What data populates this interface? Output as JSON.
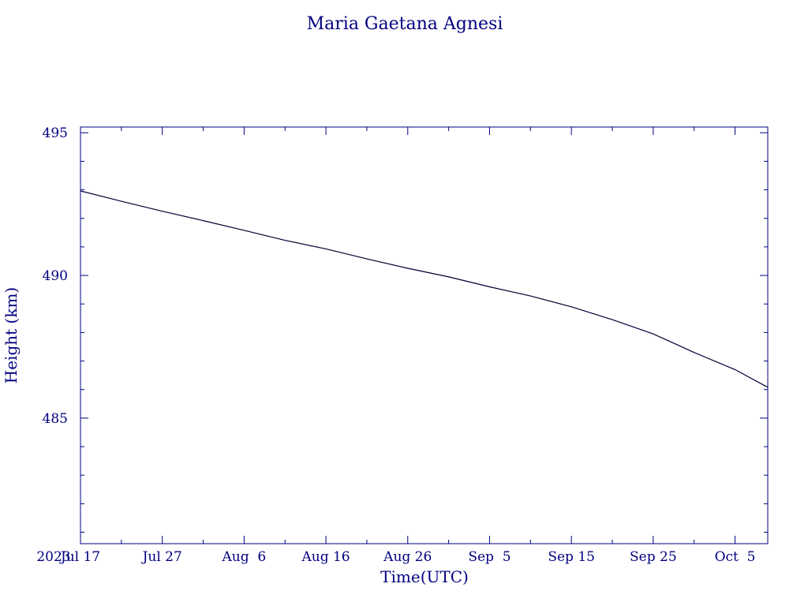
{
  "chart_data": {
    "type": "line",
    "title": "Maria Gaetana Agnesi",
    "xlabel": "Time(UTC)",
    "ylabel": "Height (km)",
    "x_start_label": "2023",
    "xlim": [
      "2023-07-17",
      "2023-10-09"
    ],
    "ylim": [
      480.6,
      495.2
    ],
    "x_ticks": [
      {
        "date": "2023-07-17",
        "label": "Jul 17"
      },
      {
        "date": "2023-07-27",
        "label": "Jul 27"
      },
      {
        "date": "2023-08-06",
        "label": "Aug  6"
      },
      {
        "date": "2023-08-16",
        "label": "Aug 16"
      },
      {
        "date": "2023-08-26",
        "label": "Aug 26"
      },
      {
        "date": "2023-09-05",
        "label": "Sep  5"
      },
      {
        "date": "2023-09-15",
        "label": "Sep 15"
      },
      {
        "date": "2023-09-25",
        "label": "Sep 25"
      },
      {
        "date": "2023-10-05",
        "label": "Oct  5"
      }
    ],
    "y_ticks": [
      {
        "value": 495,
        "label": "495"
      },
      {
        "value": 490,
        "label": "490"
      },
      {
        "value": 485,
        "label": "485"
      }
    ],
    "x_minor_step_days": 5,
    "y_minor_step": 1,
    "grid": false,
    "legend": "none",
    "color": "#000080",
    "series": [
      {
        "color": "#000033",
        "points": [
          {
            "x": "2023-07-17",
            "y": 492.96
          },
          {
            "x": "2023-07-22",
            "y": 492.6
          },
          {
            "x": "2023-07-27",
            "y": 492.25
          },
          {
            "x": "2023-08-01",
            "y": 491.92
          },
          {
            "x": "2023-08-06",
            "y": 491.58
          },
          {
            "x": "2023-08-11",
            "y": 491.23
          },
          {
            "x": "2023-08-16",
            "y": 490.93
          },
          {
            "x": "2023-08-21",
            "y": 490.58
          },
          {
            "x": "2023-08-26",
            "y": 490.25
          },
          {
            "x": "2023-08-31",
            "y": 489.95
          },
          {
            "x": "2023-09-05",
            "y": 489.6
          },
          {
            "x": "2023-09-10",
            "y": 489.28
          },
          {
            "x": "2023-09-15",
            "y": 488.9
          },
          {
            "x": "2023-09-20",
            "y": 488.45
          },
          {
            "x": "2023-09-25",
            "y": 487.95
          },
          {
            "x": "2023-09-30",
            "y": 487.3
          },
          {
            "x": "2023-10-05",
            "y": 486.7
          },
          {
            "x": "2023-10-09",
            "y": 486.08
          }
        ]
      }
    ]
  }
}
